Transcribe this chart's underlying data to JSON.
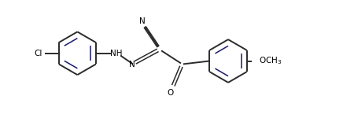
{
  "bg_color": "#ffffff",
  "line_color": "#2b2b2b",
  "ring_color": "#1a1a6e",
  "text_color": "#000000",
  "figsize": [
    4.36,
    1.55
  ],
  "dpi": 100,
  "bond_lw": 1.4,
  "ring_lw": 1.1,
  "font_size": 7.5,
  "xlim": [
    -0.7,
    8.2
  ],
  "ylim": [
    -1.0,
    1.7
  ]
}
